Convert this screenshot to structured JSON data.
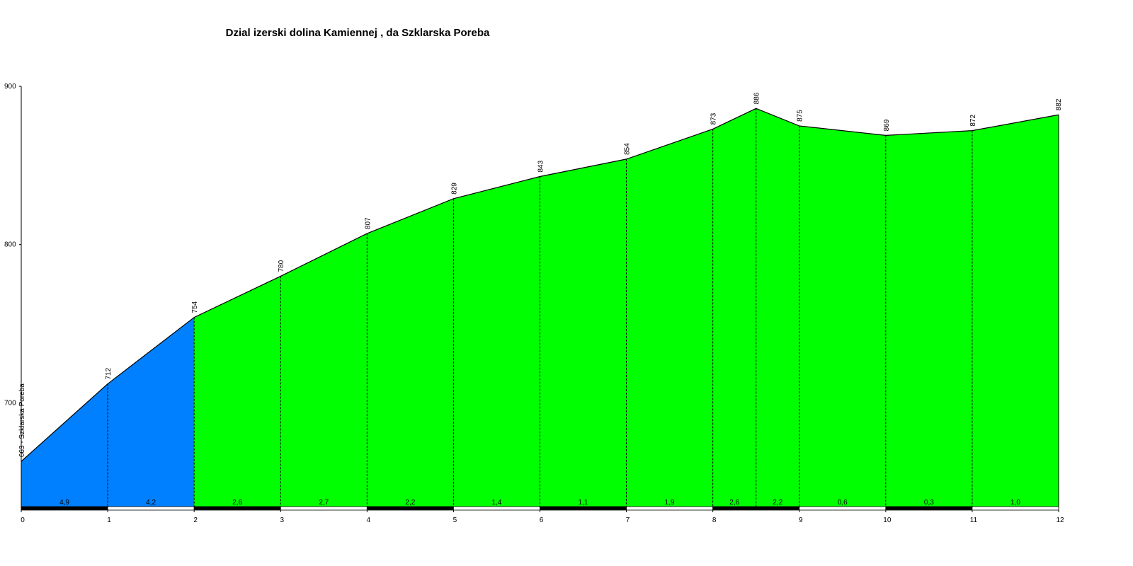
{
  "chart_data": {
    "type": "area",
    "title": "Dzial izerski dolina Kamiennej , da Szklarska Poreba",
    "xlabel": "",
    "ylabel": "",
    "xlim": [
      0,
      12
    ],
    "ylim": [
      634,
      900
    ],
    "x_ticks": [
      0,
      1,
      2,
      3,
      4,
      5,
      6,
      7,
      8,
      9,
      10,
      11,
      12
    ],
    "y_ticks": [
      700,
      800,
      900
    ],
    "grid": false,
    "points": [
      {
        "x": 0,
        "y": 663,
        "label": "663 - Szklarska Poreba"
      },
      {
        "x": 1,
        "y": 712,
        "label": "712"
      },
      {
        "x": 2,
        "y": 754,
        "label": "754"
      },
      {
        "x": 3,
        "y": 780,
        "label": "780"
      },
      {
        "x": 4,
        "y": 807,
        "label": "807"
      },
      {
        "x": 5,
        "y": 829,
        "label": "829"
      },
      {
        "x": 6,
        "y": 843,
        "label": "843"
      },
      {
        "x": 7,
        "y": 854,
        "label": "854"
      },
      {
        "x": 8,
        "y": 873,
        "label": "873"
      },
      {
        "x": 8.5,
        "y": 886,
        "label": "886"
      },
      {
        "x": 9,
        "y": 875,
        "label": "875"
      },
      {
        "x": 10,
        "y": 869,
        "label": "869"
      },
      {
        "x": 11,
        "y": 872,
        "label": "872"
      },
      {
        "x": 12,
        "y": 882,
        "label": "882"
      }
    ],
    "segments": [
      {
        "from": 0,
        "to": 1,
        "grade": "4,9",
        "color": "#0080ff"
      },
      {
        "from": 1,
        "to": 2,
        "grade": "4,2",
        "color": "#0080ff"
      },
      {
        "from": 2,
        "to": 3,
        "grade": "2,6",
        "color": "#00ff00"
      },
      {
        "from": 3,
        "to": 4,
        "grade": "2,7",
        "color": "#00ff00"
      },
      {
        "from": 4,
        "to": 5,
        "grade": "2,2",
        "color": "#00ff00"
      },
      {
        "from": 5,
        "to": 6,
        "grade": "1,4",
        "color": "#00ff00"
      },
      {
        "from": 6,
        "to": 7,
        "grade": "1,1",
        "color": "#00ff00"
      },
      {
        "from": 7,
        "to": 8,
        "grade": "1,9",
        "color": "#00ff00"
      },
      {
        "from": 8,
        "to": 8.5,
        "grade": "2,6",
        "color": "#00ff00"
      },
      {
        "from": 8.5,
        "to": 9,
        "grade": "2,2",
        "color": "#00ff00"
      },
      {
        "from": 9,
        "to": 10,
        "grade": "0,6",
        "color": "#00ff00"
      },
      {
        "from": 10,
        "to": 11,
        "grade": "0,3",
        "color": "#00ff00"
      },
      {
        "from": 11,
        "to": 12,
        "grade": "1,0",
        "color": "#00ff00"
      }
    ],
    "colors": {
      "axis": "#000000",
      "outline": "#000000",
      "band_dark": "#000000",
      "band_light": "#ffffff"
    }
  }
}
